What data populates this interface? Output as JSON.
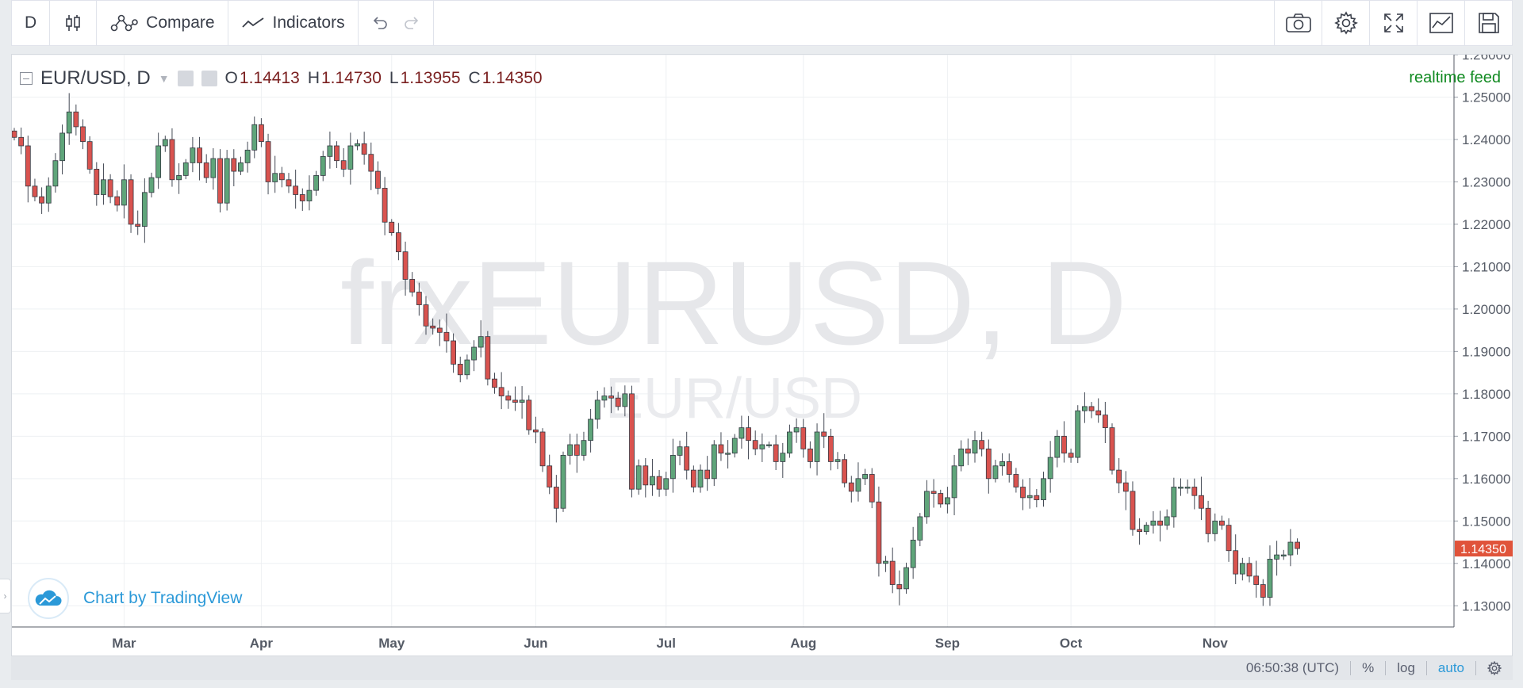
{
  "toolbar": {
    "interval_label": "D",
    "compare_label": "Compare",
    "indicators_label": "Indicators",
    "icons": [
      "candles-icon",
      "compare-icon",
      "indicators-icon",
      "undo-icon",
      "redo-icon",
      "camera-icon",
      "gear-icon",
      "fullscreen-icon",
      "chart-icon",
      "save-icon"
    ]
  },
  "legend": {
    "symbol": "EUR/USD, D",
    "open_key": "O",
    "open": "1.14413",
    "high_key": "H",
    "high": "1.14730",
    "low_key": "L",
    "low": "1.13955",
    "close_key": "C",
    "close": "1.14350"
  },
  "realtime_label": "realtime feed",
  "watermark": {
    "main": "frxEURUSD, D",
    "sub": "EUR/USD"
  },
  "branding": "Chart by TradingView",
  "status": {
    "time": "06:50:38 (UTC)",
    "percent": "%",
    "log": "log",
    "auto": "auto"
  },
  "colors": {
    "up": "#53b987",
    "down": "#eb4d5c",
    "up_body": "#5fa57a",
    "down_body": "#d9534f",
    "price_tag": "#e0533a",
    "feed": "#118a21",
    "link": "#2b99d8"
  },
  "chart_data": {
    "type": "candlestick",
    "symbol": "EUR/USD",
    "interval": "D",
    "ylim": [
      1.125,
      1.26
    ],
    "y_ticks": [
      "1.26000",
      "1.25000",
      "1.24000",
      "1.23000",
      "1.22000",
      "1.21000",
      "1.20000",
      "1.19000",
      "1.18000",
      "1.17000",
      "1.16000",
      "1.15000",
      "1.14000",
      "1.13000"
    ],
    "last_price_label": "1.14350",
    "last_price": 1.1435,
    "x_ticks": [
      {
        "label": "Mar",
        "bar": 16
      },
      {
        "label": "Apr",
        "bar": 36
      },
      {
        "label": "May",
        "bar": 55
      },
      {
        "label": "Jun",
        "bar": 76
      },
      {
        "label": "Jul",
        "bar": 95
      },
      {
        "label": "Aug",
        "bar": 115
      },
      {
        "label": "Sep",
        "bar": 136
      },
      {
        "label": "Oct",
        "bar": 154
      },
      {
        "label": "Nov",
        "bar": 175
      }
    ],
    "closes": [
      1.2405,
      1.2385,
      1.229,
      1.2265,
      1.225,
      1.229,
      1.235,
      1.2415,
      1.2465,
      1.243,
      1.2395,
      1.233,
      1.227,
      1.2305,
      1.2265,
      1.2245,
      1.2305,
      1.22,
      1.2195,
      1.2275,
      1.231,
      1.2385,
      1.24,
      1.2305,
      1.2315,
      1.2345,
      1.238,
      1.2345,
      1.231,
      1.2355,
      1.225,
      1.2355,
      1.2325,
      1.2345,
      1.2375,
      1.2435,
      1.2395,
      1.23,
      1.232,
      1.2305,
      1.229,
      1.227,
      1.2255,
      1.228,
      1.2315,
      1.236,
      1.2385,
      1.235,
      1.233,
      1.2385,
      1.239,
      1.2365,
      1.2325,
      1.2285,
      1.2205,
      1.218,
      1.2135,
      1.207,
      1.204,
      1.201,
      1.196,
      1.1955,
      1.1945,
      1.1925,
      1.187,
      1.1845,
      1.188,
      1.191,
      1.1935,
      1.1835,
      1.1815,
      1.1795,
      1.1785,
      1.178,
      1.1785,
      1.1715,
      1.171,
      1.163,
      1.158,
      1.153,
      1.1655,
      1.168,
      1.1655,
      1.169,
      1.174,
      1.1785,
      1.1795,
      1.179,
      1.177,
      1.18,
      1.1575,
      1.163,
      1.1585,
      1.1605,
      1.1575,
      1.16,
      1.1655,
      1.1675,
      1.162,
      1.158,
      1.162,
      1.16,
      1.168,
      1.166,
      1.166,
      1.1695,
      1.172,
      1.169,
      1.167,
      1.168,
      1.168,
      1.164,
      1.166,
      1.171,
      1.172,
      1.167,
      1.164,
      1.171,
      1.17,
      1.164,
      1.1645,
      1.159,
      1.157,
      1.16,
      1.161,
      1.1545,
      1.14,
      1.1405,
      1.135,
      1.134,
      1.139,
      1.1455,
      1.151,
      1.157,
      1.1565,
      1.154,
      1.1555,
      1.163,
      1.167,
      1.166,
      1.169,
      1.167,
      1.16,
      1.163,
      1.164,
      1.161,
      1.158,
      1.1555,
      1.156,
      1.155,
      1.16,
      1.165,
      1.17,
      1.166,
      1.165,
      1.176,
      1.177,
      1.176,
      1.175,
      1.172,
      1.162,
      1.159,
      1.157,
      1.148,
      1.1475,
      1.149,
      1.15,
      1.149,
      1.151,
      1.158,
      1.158,
      1.158,
      1.156,
      1.153,
      1.147,
      1.15,
      1.149,
      1.143,
      1.1375,
      1.14,
      1.137,
      1.135,
      1.132,
      1.141,
      1.142,
      1.142,
      1.145,
      1.1435
    ]
  }
}
